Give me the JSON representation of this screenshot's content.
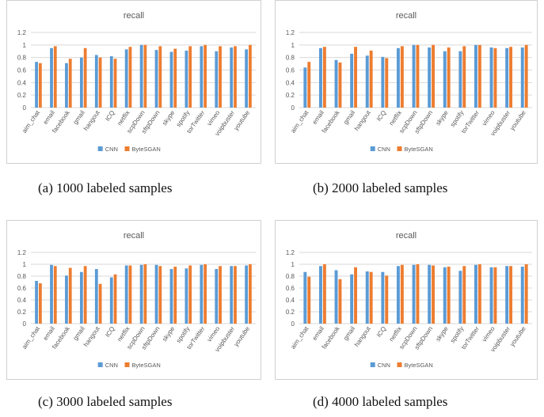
{
  "colors": {
    "cnn": "#5b9bd5",
    "bytesgan": "#ed7d31",
    "grid": "#d9d9d9",
    "axis_text": "#595959"
  },
  "chart_data": [
    {
      "type": "bar",
      "title": "recall",
      "caption": "(a)  1000 labeled samples",
      "categories": [
        "aim_chat",
        "email",
        "facebook",
        "gmail",
        "hangout",
        "ICQ",
        "netflix",
        "scpDown",
        "sftpDown",
        "skype",
        "spotify",
        "torTwitter",
        "vimeo",
        "voipbuster",
        "youtube"
      ],
      "series": [
        {
          "name": "CNN",
          "values": [
            0.73,
            0.95,
            0.71,
            0.8,
            0.84,
            0.82,
            0.93,
            1.0,
            0.92,
            0.89,
            0.91,
            0.98,
            0.9,
            0.96,
            0.93
          ]
        },
        {
          "name": "ByteSGAN",
          "values": [
            0.71,
            0.98,
            0.78,
            0.95,
            0.8,
            0.78,
            0.97,
            1.0,
            0.98,
            0.94,
            0.98,
            1.0,
            0.98,
            0.98,
            1.0
          ]
        }
      ],
      "yticks": [
        "0",
        "0.2",
        "0.4",
        "0.6",
        "0.8",
        "1",
        "1.2"
      ],
      "ylim": [
        0,
        1.2
      ],
      "legend": "bottom",
      "grid": true
    },
    {
      "type": "bar",
      "title": "recall",
      "caption": "(b)  2000 labeled samples",
      "categories": [
        "aim_chat",
        "email",
        "facebook",
        "gmail",
        "hangout",
        "ICQ",
        "netflix",
        "scpDown",
        "sftpDown",
        "skype",
        "spotify",
        "torTwitter",
        "vimeo",
        "voipbuster",
        "youtube"
      ],
      "series": [
        {
          "name": "CNN",
          "values": [
            0.64,
            0.95,
            0.76,
            0.86,
            0.83,
            0.81,
            0.95,
            1.0,
            0.96,
            0.9,
            0.9,
            1.0,
            0.96,
            0.95,
            0.96
          ]
        },
        {
          "name": "ByteSGAN",
          "values": [
            0.73,
            0.97,
            0.72,
            0.97,
            0.91,
            0.79,
            0.98,
            1.0,
            1.0,
            0.96,
            0.98,
            1.0,
            0.95,
            0.97,
            1.0
          ]
        }
      ],
      "yticks": [
        "0",
        "0.2",
        "0.4",
        "0.6",
        "0.8",
        "1",
        "1.2"
      ],
      "ylim": [
        0,
        1.2
      ],
      "legend": "bottom",
      "grid": true
    },
    {
      "type": "bar",
      "title": "recall",
      "caption": "(c)  3000 labeled samples",
      "categories": [
        "aim_chat",
        "email",
        "facebook",
        "gmail",
        "hangout",
        "ICQ",
        "netflix",
        "scpDown",
        "sftpDown",
        "skype",
        "spotify",
        "torTwitter",
        "vimeo",
        "voipbuster",
        "youtube"
      ],
      "series": [
        {
          "name": "CNN",
          "values": [
            0.72,
            0.99,
            0.81,
            0.87,
            0.92,
            0.78,
            0.98,
            0.99,
            0.99,
            0.92,
            0.93,
            0.99,
            0.92,
            0.97,
            0.98
          ]
        },
        {
          "name": "ByteSGAN",
          "values": [
            0.68,
            0.97,
            0.94,
            0.97,
            0.67,
            0.83,
            0.98,
            1.0,
            0.97,
            0.96,
            0.98,
            1.0,
            0.97,
            0.97,
            1.0
          ]
        }
      ],
      "yticks": [
        "0",
        "0.2",
        "0.4",
        "0.6",
        "0.8",
        "1",
        "1.2"
      ],
      "ylim": [
        0,
        1.2
      ],
      "legend": "bottom",
      "grid": true
    },
    {
      "type": "bar",
      "title": "recall",
      "caption": "(d)  4000 labeled samples",
      "categories": [
        "aim_chat",
        "email",
        "facebook",
        "gmail",
        "hangout",
        "ICQ",
        "netflix",
        "scpDown",
        "sftpDown",
        "skype",
        "spotify",
        "torTwitter",
        "vimeo",
        "voipbuster",
        "youtube"
      ],
      "series": [
        {
          "name": "CNN",
          "values": [
            0.87,
            0.97,
            0.9,
            0.83,
            0.88,
            0.87,
            0.97,
            0.99,
            0.99,
            0.95,
            0.89,
            0.99,
            0.95,
            0.97,
            0.96
          ]
        },
        {
          "name": "ByteSGAN",
          "values": [
            0.79,
            1.0,
            0.75,
            0.95,
            0.87,
            0.81,
            0.99,
            1.0,
            0.98,
            0.96,
            0.97,
            1.0,
            0.95,
            0.97,
            1.0
          ]
        }
      ],
      "yticks": [
        "0",
        "0.2",
        "0.4",
        "0.6",
        "0.8",
        "1",
        "1.2"
      ],
      "ylim": [
        0,
        1.2
      ],
      "legend": "bottom",
      "grid": true
    }
  ]
}
